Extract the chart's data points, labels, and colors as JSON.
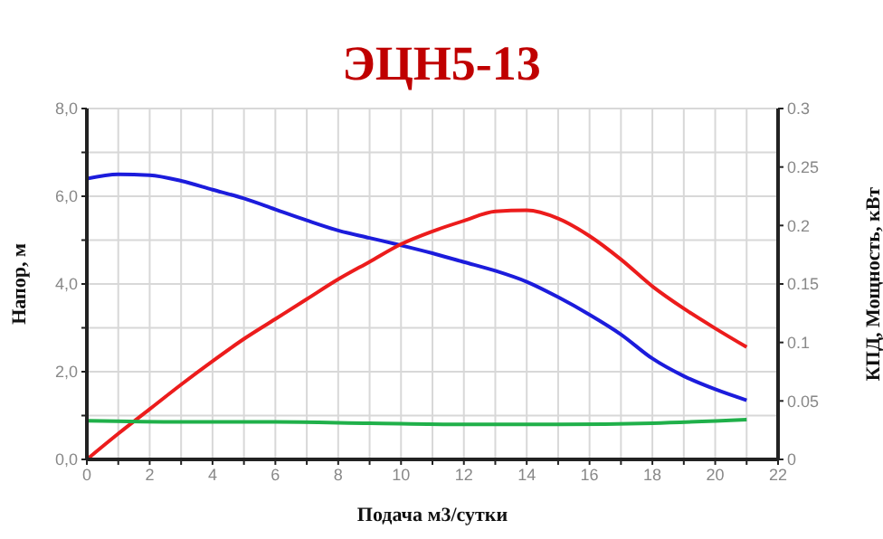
{
  "chart_data": {
    "type": "line",
    "title": "ЭЦН5-13",
    "xlabel": "Подача м3/сутки",
    "ylabel": "Напор, м",
    "y2label": "КПД,  Мощность, кВт",
    "x": [
      0,
      1,
      2,
      3,
      4,
      5,
      6,
      7,
      8,
      9,
      10,
      11,
      12,
      13,
      14,
      15,
      16,
      17,
      18,
      19,
      20,
      21
    ],
    "series": [
      {
        "color": "#1c1cdc",
        "values": [
          6.4,
          6.5,
          6.48,
          6.35,
          6.15,
          5.95,
          5.7,
          5.45,
          5.22,
          5.05,
          4.88,
          4.7,
          4.5,
          4.3,
          4.05,
          3.7,
          3.3,
          2.85,
          2.3,
          1.9,
          1.6,
          1.35
        ]
      },
      {
        "color": "#ec1c1c",
        "axis": "y2",
        "values": [
          0,
          0.022,
          0.043,
          0.064,
          0.084,
          0.103,
          0.12,
          0.137,
          0.154,
          0.169,
          0.184,
          0.195,
          0.204,
          0.212,
          0.213,
          0.206,
          0.191,
          0.171,
          0.148,
          0.129,
          0.112,
          0.096
        ]
      },
      {
        "color": "#20b04a",
        "axis": "y2",
        "x": [
          0,
          3,
          6,
          9,
          12,
          15,
          18,
          21
        ],
        "values": [
          0.033,
          0.032,
          0.032,
          0.031,
          0.03,
          0.03,
          0.031,
          0.034
        ]
      }
    ],
    "xlim": [
      0,
      22
    ],
    "xticks": [
      0,
      {
        "value": 1,
        "label": null
      },
      2,
      {
        "value": 3,
        "label": null
      },
      4,
      {
        "value": 5,
        "label": null
      },
      6,
      {
        "value": 7,
        "label": null
      },
      8,
      {
        "value": 9,
        "label": null
      },
      10,
      {
        "value": 11,
        "label": null
      },
      12,
      {
        "value": 13,
        "label": null
      },
      14,
      {
        "value": 15,
        "label": null
      },
      16,
      {
        "value": 17,
        "label": null
      },
      18,
      {
        "value": 19,
        "label": null
      },
      20,
      {
        "value": 21,
        "label": null
      },
      22
    ],
    "ylim": [
      0,
      8
    ],
    "yticks": [
      {
        "value": 0,
        "label": "0,0"
      },
      {
        "value": 1,
        "label": null
      },
      {
        "value": 2,
        "label": "2,0"
      },
      {
        "value": 3,
        "label": null
      },
      {
        "value": 4,
        "label": "4,0"
      },
      {
        "value": 5,
        "label": null
      },
      {
        "value": 6,
        "label": "6,0"
      },
      {
        "value": 7,
        "label": null
      },
      {
        "value": 8,
        "label": "8,0"
      }
    ],
    "y2lim": [
      0,
      0.3
    ],
    "y2ticks": [
      0,
      0.05,
      0.1,
      0.15,
      0.2,
      0.25,
      0.3
    ],
    "grid": true,
    "marker": "none",
    "line_style": "solid"
  }
}
